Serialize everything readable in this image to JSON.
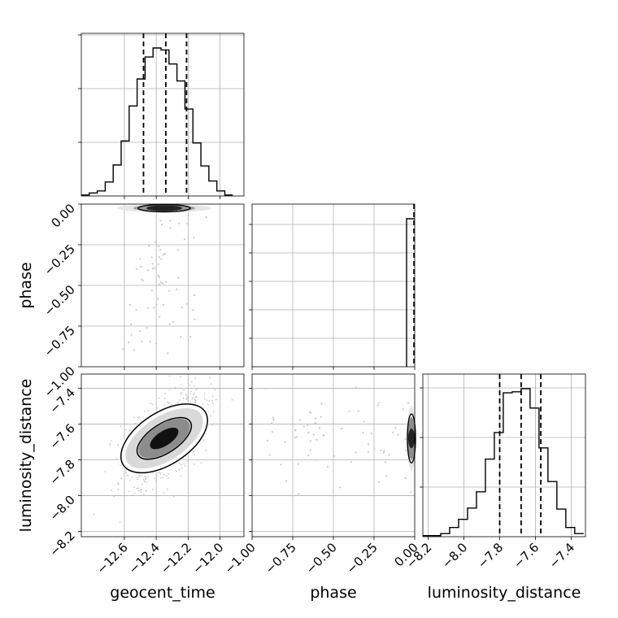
{
  "chart_data": {
    "type": "corner",
    "parameters": [
      "geocent_time",
      "phase",
      "luminosity_distance"
    ],
    "axes_labels": {
      "bottom": [
        "geocent_time",
        "phase",
        "luminosity_distance"
      ],
      "left": [
        "phase",
        "luminosity_distance"
      ]
    },
    "ranges": {
      "geocent_time": [
        -12.87,
        -11.85
      ],
      "phase": [
        -1.0,
        0.0
      ],
      "luminosity_distance": [
        -8.23,
        -7.32
      ]
    },
    "ticks": {
      "geocent_time": {
        "values": [
          -12.6,
          -12.4,
          -12.2,
          -12.0
        ],
        "labels": [
          "−12.6",
          "−12.4",
          "−12.2",
          "−12.0"
        ]
      },
      "phase_x": {
        "values": [
          -1.0,
          -0.75,
          -0.5,
          -0.25,
          0.0
        ],
        "labels": [
          "−1.00",
          "−0.75",
          "−0.50",
          "−0.25",
          "0.00"
        ]
      },
      "phase_y": {
        "values": [
          0.0,
          -0.25,
          -0.5,
          -0.75,
          -1.0
        ],
        "labels": [
          "0.00",
          "−0.25",
          "−0.50",
          "−0.75",
          "−1.00"
        ]
      },
      "luminosity_distance_x": {
        "values": [
          -8.2,
          -8.0,
          -7.8,
          -7.6,
          -7.4
        ],
        "labels": [
          "−8.2",
          "−8.0",
          "−7.8",
          "−7.6",
          "−7.4"
        ]
      },
      "luminosity_distance_y": {
        "values": [
          -7.4,
          -7.6,
          -7.8,
          -8.0,
          -8.2
        ],
        "labels": [
          "−7.4",
          "−7.6",
          "−7.8",
          "−8.0",
          "−8.2"
        ]
      }
    },
    "grid": true,
    "quantiles": {
      "geocent_time": [
        -12.48,
        -12.34,
        -12.21
      ],
      "phase": [
        -0.0015,
        -0.001,
        -0.0005
      ],
      "luminosity_distance": [
        -7.8,
        -7.68,
        -7.57
      ]
    },
    "histograms": {
      "geocent_time": {
        "edges": [
          -12.87,
          -12.82,
          -12.77,
          -12.72,
          -12.67,
          -12.62,
          -12.57,
          -12.52,
          -12.47,
          -12.42,
          -12.37,
          -12.32,
          -12.27,
          -12.22,
          -12.17,
          -12.12,
          -12.07,
          -12.02,
          -11.97,
          -11.92
        ],
        "counts": [
          1,
          3,
          5,
          14,
          31,
          55,
          90,
          117,
          139,
          148,
          146,
          132,
          115,
          87,
          53,
          30,
          15,
          5,
          1
        ]
      },
      "phase": {
        "edges": [
          -1.0,
          -0.95,
          -0.9,
          -0.85,
          -0.8,
          -0.75,
          -0.7,
          -0.65,
          -0.6,
          -0.55,
          -0.5,
          -0.45,
          -0.4,
          -0.35,
          -0.3,
          -0.25,
          -0.2,
          -0.15,
          -0.1,
          -0.05,
          0.0
        ],
        "counts": [
          0,
          0,
          0,
          0,
          0,
          0,
          0,
          0,
          0,
          0,
          0,
          0,
          0,
          0,
          0,
          0,
          0,
          0,
          0,
          172
        ]
      },
      "luminosity_distance": {
        "edges": [
          -8.23,
          -8.18,
          -8.13,
          -8.08,
          -8.03,
          -7.98,
          -7.93,
          -7.88,
          -7.83,
          -7.78,
          -7.73,
          -7.68,
          -7.63,
          -7.58,
          -7.53,
          -7.48,
          -7.43,
          -7.38,
          -7.33
        ],
        "counts": [
          1,
          1,
          3,
          9,
          17,
          28,
          44,
          76,
          102,
          141,
          142,
          145,
          126,
          87,
          54,
          27,
          9,
          3
        ]
      }
    },
    "joint_2d": {
      "geocent_time_vs_luminosity_distance": {
        "center": [
          -12.35,
          -7.68
        ],
        "correlation": 0.6
      },
      "geocent_time_vs_phase": {
        "center": [
          -12.35,
          -0.001
        ]
      },
      "phase_vs_luminosity_distance": {
        "center": [
          -0.001,
          -7.68
        ]
      }
    },
    "colors": {
      "line": "#000000",
      "scatter": "#b0b0b0",
      "grid": "#b0b0b0"
    }
  }
}
